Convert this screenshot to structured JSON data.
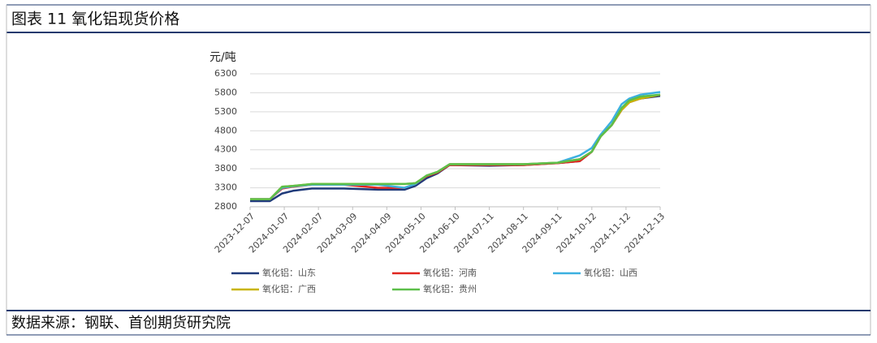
{
  "chart_data": {
    "type": "line",
    "title": "图表 11 氧化铝现货价格",
    "y_label": "元/吨",
    "source": "数据来源：钢联、首创期货研究院",
    "x": [
      "2023-12-07",
      "2023-12-25",
      "2024-01-05",
      "2024-01-15",
      "2024-02-01",
      "2024-03-01",
      "2024-04-01",
      "2024-04-25",
      "2024-05-05",
      "2024-05-15",
      "2024-05-25",
      "2024-06-05",
      "2024-07-11",
      "2024-08-11",
      "2024-09-11",
      "2024-10-01",
      "2024-10-12",
      "2024-10-20",
      "2024-10-30",
      "2024-11-08",
      "2024-11-15",
      "2024-11-25",
      "2024-12-13"
    ],
    "xlim": [
      "2023-12-07",
      "2024-12-13"
    ],
    "xticks": [
      "2023-12-07",
      "2024-01-07",
      "2024-02-07",
      "2024-03-09",
      "2024-04-09",
      "2024-05-10",
      "2024-06-10",
      "2024-07-11",
      "2024-08-11",
      "2024-09-11",
      "2024-10-12",
      "2024-11-12",
      "2024-12-13"
    ],
    "ylim": [
      2800,
      6300
    ],
    "yticks": [
      2800,
      3300,
      3800,
      4300,
      4800,
      5300,
      5800,
      6300
    ],
    "grid": true,
    "series": [
      {
        "name": "氧化铝：山东",
        "color": "#1f3a7a",
        "values": [
          2950,
          2950,
          3150,
          3220,
          3280,
          3280,
          3250,
          3250,
          3350,
          3550,
          3680,
          3900,
          3880,
          3900,
          3950,
          4000,
          4250,
          4650,
          4950,
          5350,
          5550,
          5650,
          5720
        ]
      },
      {
        "name": "氧化铝：河南",
        "color": "#e0261f",
        "values": [
          3000,
          3000,
          3280,
          3330,
          3380,
          3380,
          3300,
          3300,
          3400,
          3600,
          3700,
          3900,
          3900,
          3900,
          3950,
          4000,
          4250,
          4650,
          4950,
          5350,
          5550,
          5650,
          5750
        ]
      },
      {
        "name": "氧化铝：山西",
        "color": "#3bb0e0",
        "values": [
          3000,
          3000,
          3300,
          3340,
          3380,
          3380,
          3380,
          3300,
          3400,
          3620,
          3720,
          3920,
          3920,
          3920,
          3960,
          4150,
          4350,
          4700,
          5050,
          5500,
          5650,
          5750,
          5820
        ]
      },
      {
        "name": "氧化铝：广西",
        "color": "#c8b400",
        "values": [
          3000,
          3000,
          3330,
          3350,
          3400,
          3400,
          3400,
          3400,
          3420,
          3620,
          3720,
          3920,
          3920,
          3920,
          3960,
          4050,
          4250,
          4650,
          4950,
          5350,
          5550,
          5650,
          5750
        ]
      },
      {
        "name": "氧化铝：贵州",
        "color": "#5cbf4a",
        "values": [
          3000,
          3000,
          3330,
          3350,
          3400,
          3400,
          3400,
          3400,
          3420,
          3620,
          3720,
          3920,
          3920,
          3920,
          3960,
          4050,
          4250,
          4650,
          4950,
          5400,
          5600,
          5700,
          5750
        ]
      }
    ]
  }
}
